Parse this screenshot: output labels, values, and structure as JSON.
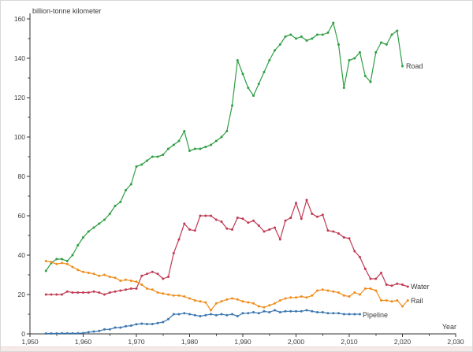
{
  "window": {
    "background": "#ffffff",
    "border_color": "#d8d8d8",
    "bottom_bar_color": "#f6eae9"
  },
  "chart_data": {
    "type": "line",
    "title": "",
    "ylabel": "billion-tonne kilometer",
    "xlabel": "Year",
    "grid": false,
    "legend_position": "end-of-line-labels",
    "marker": "point",
    "text_color": "#3b3b3b",
    "axis_color": "#333333",
    "x_axis": {
      "min": 1950,
      "max": 2030,
      "major_step": 10,
      "minor_step": 5,
      "tick_labels": [
        "1,950",
        "1,960",
        "1,970",
        "1,980",
        "1,990",
        "2,000",
        "2,010",
        "2,020",
        "2,030"
      ]
    },
    "y_axis": {
      "min": 0,
      "max": 160,
      "major_step": 20,
      "minor_step": 10,
      "tick_labels": [
        "0",
        "20",
        "40",
        "60",
        "80",
        "100",
        "120",
        "140",
        "160"
      ]
    },
    "series": [
      {
        "name": "Road",
        "color": "#2f9e44",
        "points": [
          [
            1953,
            32
          ],
          [
            1954,
            36
          ],
          [
            1955,
            38
          ],
          [
            1956,
            38
          ],
          [
            1957,
            37
          ],
          [
            1958,
            40
          ],
          [
            1959,
            45
          ],
          [
            1960,
            49
          ],
          [
            1961,
            52
          ],
          [
            1962,
            54
          ],
          [
            1963,
            56
          ],
          [
            1964,
            58
          ],
          [
            1965,
            61
          ],
          [
            1966,
            65
          ],
          [
            1967,
            67
          ],
          [
            1968,
            73
          ],
          [
            1969,
            76
          ],
          [
            1970,
            85
          ],
          [
            1971,
            86
          ],
          [
            1972,
            88
          ],
          [
            1973,
            90
          ],
          [
            1974,
            90
          ],
          [
            1975,
            91
          ],
          [
            1976,
            94
          ],
          [
            1977,
            96
          ],
          [
            1978,
            98
          ],
          [
            1979,
            103
          ],
          [
            1980,
            93
          ],
          [
            1981,
            94
          ],
          [
            1982,
            94
          ],
          [
            1983,
            95
          ],
          [
            1984,
            96
          ],
          [
            1985,
            98
          ],
          [
            1986,
            100
          ],
          [
            1987,
            103
          ],
          [
            1988,
            116
          ],
          [
            1989,
            139
          ],
          [
            1990,
            132
          ],
          [
            1991,
            125
          ],
          [
            1992,
            121
          ],
          [
            1993,
            127
          ],
          [
            1994,
            133
          ],
          [
            1995,
            139
          ],
          [
            1996,
            144
          ],
          [
            1997,
            147
          ],
          [
            1998,
            151
          ],
          [
            1999,
            152
          ],
          [
            2000,
            150
          ],
          [
            2001,
            151
          ],
          [
            2002,
            149
          ],
          [
            2003,
            150
          ],
          [
            2004,
            152
          ],
          [
            2005,
            152
          ],
          [
            2006,
            153
          ],
          [
            2007,
            158
          ],
          [
            2008,
            147
          ],
          [
            2009,
            125
          ],
          [
            2010,
            139
          ],
          [
            2011,
            140
          ],
          [
            2012,
            143
          ],
          [
            2013,
            131
          ],
          [
            2014,
            128
          ],
          [
            2015,
            143
          ],
          [
            2016,
            148
          ],
          [
            2017,
            147
          ],
          [
            2018,
            152
          ],
          [
            2019,
            154
          ],
          [
            2020,
            136
          ]
        ]
      },
      {
        "name": "Water",
        "color": "#c03a52",
        "points": [
          [
            1953,
            20
          ],
          [
            1954,
            20
          ],
          [
            1955,
            20
          ],
          [
            1956,
            20
          ],
          [
            1957,
            21.5
          ],
          [
            1958,
            21
          ],
          [
            1959,
            21
          ],
          [
            1960,
            21
          ],
          [
            1961,
            21
          ],
          [
            1962,
            21.5
          ],
          [
            1963,
            21
          ],
          [
            1964,
            20
          ],
          [
            1965,
            21
          ],
          [
            1966,
            21.5
          ],
          [
            1967,
            22
          ],
          [
            1968,
            22.5
          ],
          [
            1969,
            23
          ],
          [
            1970,
            23
          ],
          [
            1971,
            29.5
          ],
          [
            1972,
            30.5
          ],
          [
            1973,
            31.5
          ],
          [
            1974,
            30.5
          ],
          [
            1975,
            28
          ],
          [
            1976,
            29
          ],
          [
            1977,
            41
          ],
          [
            1978,
            48
          ],
          [
            1979,
            56
          ],
          [
            1980,
            53
          ],
          [
            1981,
            52.5
          ],
          [
            1982,
            60
          ],
          [
            1983,
            60
          ],
          [
            1984,
            60
          ],
          [
            1985,
            58
          ],
          [
            1986,
            57
          ],
          [
            1987,
            53.5
          ],
          [
            1988,
            53
          ],
          [
            1989,
            59
          ],
          [
            1990,
            58.5
          ],
          [
            1991,
            56.5
          ],
          [
            1992,
            57.5
          ],
          [
            1993,
            55
          ],
          [
            1994,
            52
          ],
          [
            1995,
            53
          ],
          [
            1996,
            54
          ],
          [
            1997,
            48
          ],
          [
            1998,
            57.5
          ],
          [
            1999,
            59
          ],
          [
            2000,
            66.5
          ],
          [
            2001,
            58.5
          ],
          [
            2002,
            68
          ],
          [
            2003,
            61
          ],
          [
            2004,
            59.5
          ],
          [
            2005,
            60.5
          ],
          [
            2006,
            52.5
          ],
          [
            2007,
            52
          ],
          [
            2008,
            51
          ],
          [
            2009,
            49
          ],
          [
            2010,
            48.5
          ],
          [
            2011,
            42
          ],
          [
            2012,
            39
          ],
          [
            2013,
            33
          ],
          [
            2014,
            28
          ],
          [
            2015,
            28
          ],
          [
            2016,
            31
          ],
          [
            2017,
            25
          ],
          [
            2018,
            24.5
          ],
          [
            2019,
            25.5
          ],
          [
            2020,
            25
          ],
          [
            2021,
            24
          ]
        ]
      },
      {
        "name": "Rail",
        "color": "#ef8c1a",
        "points": [
          [
            1953,
            37
          ],
          [
            1954,
            36.5
          ],
          [
            1955,
            35.5
          ],
          [
            1956,
            36
          ],
          [
            1957,
            35.5
          ],
          [
            1958,
            34
          ],
          [
            1959,
            32.5
          ],
          [
            1960,
            31.5
          ],
          [
            1961,
            31
          ],
          [
            1962,
            30.5
          ],
          [
            1963,
            29.5
          ],
          [
            1964,
            30
          ],
          [
            1965,
            29
          ],
          [
            1966,
            28.5
          ],
          [
            1967,
            27
          ],
          [
            1968,
            27.5
          ],
          [
            1969,
            27
          ],
          [
            1970,
            26.5
          ],
          [
            1971,
            25
          ],
          [
            1972,
            23
          ],
          [
            1973,
            22.5
          ],
          [
            1974,
            21
          ],
          [
            1975,
            20.5
          ],
          [
            1976,
            20
          ],
          [
            1977,
            19.5
          ],
          [
            1978,
            19.5
          ],
          [
            1979,
            19
          ],
          [
            1980,
            18
          ],
          [
            1981,
            17
          ],
          [
            1982,
            16.5
          ],
          [
            1983,
            16
          ],
          [
            1984,
            12
          ],
          [
            1985,
            15.5
          ],
          [
            1986,
            16.5
          ],
          [
            1987,
            17.5
          ],
          [
            1988,
            18
          ],
          [
            1989,
            17.5
          ],
          [
            1990,
            16.5
          ],
          [
            1991,
            16
          ],
          [
            1992,
            15.5
          ],
          [
            1993,
            14
          ],
          [
            1994,
            13.5
          ],
          [
            1995,
            14.5
          ],
          [
            1996,
            15.5
          ],
          [
            1997,
            17
          ],
          [
            1998,
            18
          ],
          [
            1999,
            18.5
          ],
          [
            2000,
            18.5
          ],
          [
            2001,
            19
          ],
          [
            2002,
            18.5
          ],
          [
            2003,
            19.5
          ],
          [
            2004,
            22
          ],
          [
            2005,
            22.5
          ],
          [
            2006,
            22
          ],
          [
            2007,
            21.5
          ],
          [
            2008,
            21
          ],
          [
            2009,
            19.5
          ],
          [
            2010,
            19
          ],
          [
            2011,
            21
          ],
          [
            2012,
            20
          ],
          [
            2013,
            23
          ],
          [
            2014,
            23
          ],
          [
            2015,
            22
          ],
          [
            2016,
            17
          ],
          [
            2017,
            17
          ],
          [
            2018,
            16.5
          ],
          [
            2019,
            17
          ],
          [
            2020,
            14
          ],
          [
            2021,
            17
          ]
        ]
      },
      {
        "name": "Pipeline",
        "color": "#3b76af",
        "points": [
          [
            1953,
            0.2
          ],
          [
            1954,
            0.2
          ],
          [
            1955,
            0.2
          ],
          [
            1956,
            0.3
          ],
          [
            1957,
            0.3
          ],
          [
            1958,
            0.3
          ],
          [
            1959,
            0.3
          ],
          [
            1960,
            0.4
          ],
          [
            1961,
            0.9
          ],
          [
            1962,
            1.2
          ],
          [
            1963,
            1.5
          ],
          [
            1964,
            2.3
          ],
          [
            1965,
            2.3
          ],
          [
            1966,
            3.2
          ],
          [
            1967,
            3.2
          ],
          [
            1968,
            3.9
          ],
          [
            1969,
            4.2
          ],
          [
            1970,
            4.9
          ],
          [
            1971,
            5.2
          ],
          [
            1972,
            5
          ],
          [
            1973,
            5
          ],
          [
            1974,
            5.5
          ],
          [
            1975,
            6
          ],
          [
            1976,
            7.5
          ],
          [
            1977,
            10
          ],
          [
            1978,
            10
          ],
          [
            1979,
            10.5
          ],
          [
            1980,
            10
          ],
          [
            1981,
            9.5
          ],
          [
            1982,
            9
          ],
          [
            1983,
            9.5
          ],
          [
            1984,
            10
          ],
          [
            1985,
            9.5
          ],
          [
            1986,
            10
          ],
          [
            1987,
            9.5
          ],
          [
            1988,
            10
          ],
          [
            1989,
            9
          ],
          [
            1990,
            10.5
          ],
          [
            1991,
            10.5
          ],
          [
            1992,
            11
          ],
          [
            1993,
            10.5
          ],
          [
            1994,
            11.5
          ],
          [
            1995,
            11
          ],
          [
            1996,
            12
          ],
          [
            1997,
            11
          ],
          [
            1998,
            11.5
          ],
          [
            1999,
            11.5
          ],
          [
            2000,
            11.5
          ],
          [
            2001,
            11.5
          ],
          [
            2002,
            12
          ],
          [
            2003,
            11.5
          ],
          [
            2004,
            11
          ],
          [
            2005,
            11
          ],
          [
            2006,
            10.5
          ],
          [
            2007,
            10.5
          ],
          [
            2008,
            10.5
          ],
          [
            2009,
            10
          ],
          [
            2010,
            10
          ],
          [
            2011,
            10
          ],
          [
            2012,
            10
          ]
        ]
      }
    ]
  }
}
